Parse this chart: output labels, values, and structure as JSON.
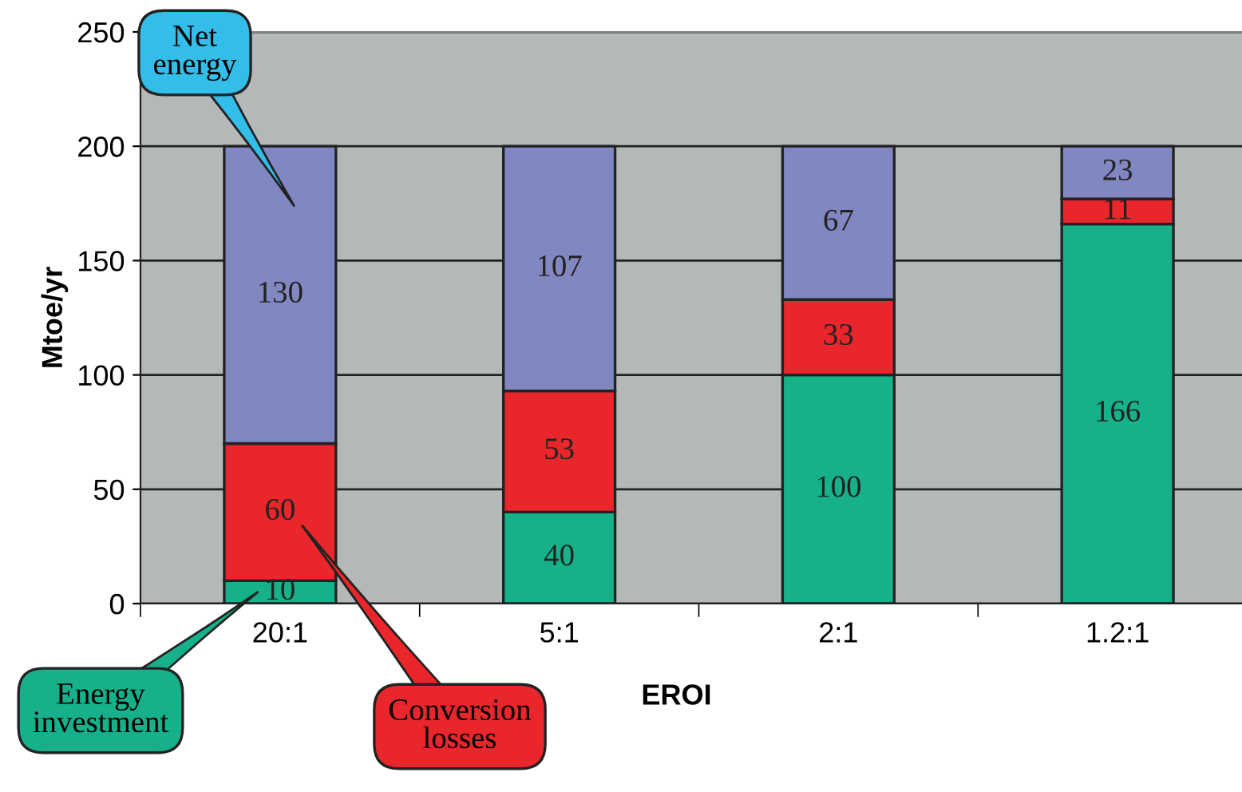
{
  "chart_data": {
    "type": "bar",
    "stacked": true,
    "xlabel": "EROI",
    "ylabel": "Mtoe/yr",
    "categories": [
      "20:1",
      "5:1",
      "2:1",
      "1.2:1"
    ],
    "series": [
      {
        "name": "Energy investment",
        "color": "#16b18a",
        "values": [
          10,
          40,
          100,
          166
        ]
      },
      {
        "name": "Conversion losses",
        "color": "#e8262c",
        "values": [
          60,
          53,
          33,
          11
        ]
      },
      {
        "name": "Net energy",
        "color": "#8187c1",
        "values": [
          130,
          107,
          67,
          23
        ]
      }
    ],
    "ylim": [
      0,
      250
    ],
    "yticks": [
      0,
      50,
      100,
      150,
      200,
      250
    ],
    "grid": "y",
    "legend": false,
    "data_labels": true
  }
}
